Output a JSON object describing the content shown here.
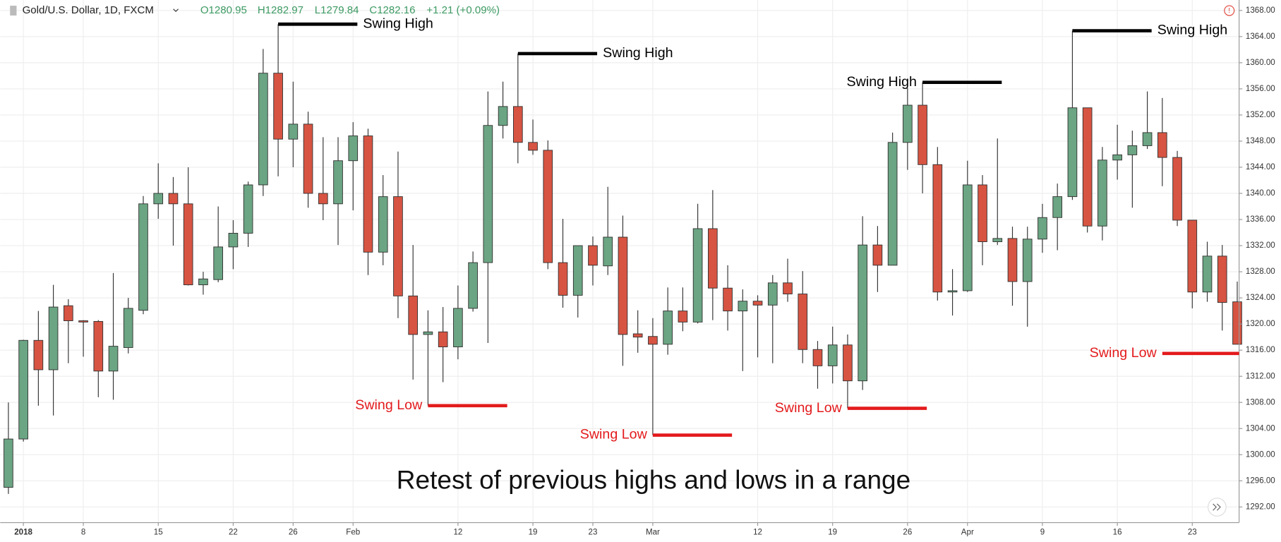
{
  "chart_data": {
    "type": "candlestick",
    "title": "Gold/U.S. Dollar, 1D, FXCM",
    "header_values": [
      "O1280.95",
      "H1282.97",
      "L1279.84",
      "C1282.16",
      "+1.21 (+0.09%)"
    ],
    "caption": "Retest of previous highs and lows in a range",
    "categories": [
      null,
      "2018",
      null,
      null,
      null,
      "8",
      null,
      null,
      null,
      null,
      "15",
      null,
      null,
      null,
      null,
      "22",
      null,
      null,
      null,
      "26",
      null,
      null,
      null,
      "Feb",
      null,
      null,
      null,
      null,
      null,
      null,
      "12",
      null,
      null,
      null,
      null,
      "19",
      null,
      null,
      null,
      "23",
      null,
      null,
      null,
      "Mar",
      null,
      null,
      null,
      null,
      null,
      null,
      "12",
      null,
      null,
      null,
      null,
      "19",
      null,
      null,
      null,
      null,
      "26",
      null,
      null,
      null,
      "Apr",
      null,
      null,
      null,
      null,
      "9",
      null,
      null,
      null,
      null,
      "16",
      null,
      null,
      null,
      null,
      "23",
      null,
      null,
      null
    ],
    "open": [
      1295,
      1302.4,
      1317.5,
      1313,
      1322.8,
      1320.5,
      1320.4,
      1312.8,
      1316.4,
      1322.1,
      1338.4,
      1340,
      1338.4,
      1326,
      1326.8,
      1331.8,
      1333.9,
      1341.3,
      1358.4,
      1348.3,
      1350.6,
      1340,
      1338.4,
      1345,
      1348.8,
      1331,
      1339.5,
      1324.3,
      1318.4,
      1318.8,
      1316.5,
      1322.4,
      1329.4,
      1350.4,
      1353.3,
      1347.8,
      1346.6,
      1329.4,
      1324.4,
      1332,
      1328.9,
      1333.3,
      1318.5,
      1318.1,
      1316.9,
      1322,
      1320.3,
      1334.6,
      1325.5,
      1322,
      1323.5,
      1322.9,
      1326.3,
      1324.6,
      1316.1,
      1313.6,
      1316.8,
      1311.3,
      1332.1,
      1329,
      1347.8,
      1353.5,
      1344.4,
      1324.9,
      1325.1,
      1341.3,
      1332.6,
      1333.1,
      1326.5,
      1333,
      1336.3,
      1339.5,
      1353.1,
      1335,
      1345.1,
      1345.9,
      1347.3,
      1349.3,
      1345.5,
      1335.9,
      1324.9,
      1330.4,
      1323.4
    ],
    "high": [
      1308,
      1317.6,
      1322,
      1326,
      1323.8,
      1320.6,
      1320.6,
      1327.8,
      1324,
      1339.6,
      1344.6,
      1342.5,
      1344,
      1328,
      1338,
      1335.9,
      1341.8,
      1362.1,
      1365.9,
      1357.1,
      1352.5,
      1348.6,
      1348.6,
      1350.9,
      1349.9,
      1342.8,
      1346.4,
      1332.1,
      1322.1,
      1322.6,
      1325.9,
      1331.1,
      1355.6,
      1357.1,
      1361.4,
      1351.3,
      1348.1,
      1336.1,
      1332,
      1333.4,
      1341,
      1336.6,
      1322.1,
      1320.9,
      1325.6,
      1325.6,
      1338.4,
      1340.5,
      1329,
      1325.3,
      1324.4,
      1327.5,
      1330,
      1328.1,
      1317.4,
      1319.6,
      1318.4,
      1336.5,
      1335,
      1349.3,
      1356.1,
      1357,
      1347.1,
      1328.4,
      1345,
      1342.8,
      1348.4,
      1334.9,
      1334.9,
      1338.4,
      1341.5,
      1364.9,
      1353.1,
      1347.1,
      1350.5,
      1349.6,
      1355.6,
      1354.6,
      1346.5,
      1335.9,
      1332.6,
      1332.1,
      1326.5
    ],
    "low": [
      1294,
      1302,
      1307.5,
      1306,
      1314,
      1315,
      1308.8,
      1308.4,
      1315.5,
      1321.5,
      1336.1,
      1332,
      1325.9,
      1324.5,
      1326.4,
      1328.4,
      1331.8,
      1339.6,
      1342.6,
      1344,
      1337.8,
      1335.9,
      1332.1,
      1337.4,
      1327.5,
      1329,
      1320.9,
      1311.5,
      1307.5,
      1311.1,
      1314.6,
      1321.9,
      1317.1,
      1348.4,
      1344.6,
      1345.9,
      1328.4,
      1322.5,
      1321,
      1325.9,
      1327.5,
      1313.6,
      1315.6,
      1303,
      1315.3,
      1318.9,
      1320.1,
      1320.6,
      1319,
      1312.8,
      1314.9,
      1314,
      1323.4,
      1314,
      1310.1,
      1310.9,
      1307.1,
      1309.9,
      1324.9,
      1329,
      1343.6,
      1340,
      1323.6,
      1321.3,
      1324.9,
      1329,
      1332.1,
      1322.8,
      1319.6,
      1330.9,
      1331.3,
      1339,
      1334,
      1332.8,
      1342.1,
      1337.8,
      1346.8,
      1341.1,
      1335,
      1322.4,
      1323.4,
      1319,
      1316.9
    ],
    "close": [
      1302.4,
      1317.5,
      1313,
      1322.6,
      1320.5,
      1320.3,
      1312.8,
      1316.6,
      1322.4,
      1338.4,
      1340,
      1338.4,
      1326,
      1326.9,
      1331.8,
      1333.9,
      1341.3,
      1358.4,
      1348.3,
      1350.6,
      1340,
      1338.4,
      1345,
      1348.8,
      1331,
      1339.5,
      1324.3,
      1318.4,
      1318.8,
      1316.5,
      1322.4,
      1329.4,
      1350.4,
      1353.3,
      1347.8,
      1346.6,
      1329.4,
      1324.4,
      1332,
      1329,
      1333.3,
      1318.4,
      1318,
      1316.9,
      1322,
      1320.3,
      1334.6,
      1325.5,
      1322,
      1323.5,
      1322.9,
      1326.3,
      1324.6,
      1316.1,
      1313.6,
      1316.8,
      1311.3,
      1332.1,
      1329,
      1347.8,
      1353.5,
      1344.4,
      1324.9,
      1325.1,
      1341.3,
      1332.6,
      1333.1,
      1326.5,
      1333,
      1336.3,
      1339.5,
      1353.1,
      1335,
      1345.1,
      1345.9,
      1347.3,
      1349.3,
      1345.5,
      1335.9,
      1324.9,
      1330.4,
      1323.3,
      1316.9
    ],
    "up_color": "#6ba583",
    "down_color": "#d75442",
    "ylim": [
      1289.6,
      1369.6
    ],
    "yticks": [
      {
        "value": 1292,
        "label": "1292.00"
      },
      {
        "value": 1296,
        "label": "1296.00"
      },
      {
        "value": 1300,
        "label": "1300.00"
      },
      {
        "value": 1304,
        "label": "1304.00"
      },
      {
        "value": 1308,
        "label": "1308.00"
      },
      {
        "value": 1312,
        "label": "1312.00"
      },
      {
        "value": 1316,
        "label": "1316.00"
      },
      {
        "value": 1320,
        "label": "1320.00"
      },
      {
        "value": 1324,
        "label": "1324.00"
      },
      {
        "value": 1328,
        "label": "1328.00"
      },
      {
        "value": 1332,
        "label": "1332.00"
      },
      {
        "value": 1336,
        "label": "1336.00"
      },
      {
        "value": 1340,
        "label": "1340.00"
      },
      {
        "value": 1344,
        "label": "1344.00"
      },
      {
        "value": 1348,
        "label": "1348.00"
      },
      {
        "value": 1352,
        "label": "1352.00"
      },
      {
        "value": 1356,
        "label": "1356.00"
      },
      {
        "value": 1360,
        "label": "1360.00"
      },
      {
        "value": 1364,
        "label": "1364.00"
      },
      {
        "value": 1368,
        "label": "1368.00"
      }
    ],
    "grid": true,
    "annotations": [
      {
        "label": "Swing High",
        "value": 1365.9,
        "color": "#000000"
      },
      {
        "label": "Swing High",
        "value": 1361.4,
        "color": "#000000"
      },
      {
        "label": "Swing High",
        "value": 1357,
        "color": "#000000"
      },
      {
        "label": "Swing High",
        "value": 1364.9,
        "color": "#000000"
      },
      {
        "label": "Swing Low",
        "value": 1307.5,
        "color": "#e31a1c"
      },
      {
        "label": "Swing Low",
        "value": 1303,
        "color": "#e31a1c"
      },
      {
        "label": "Swing Low",
        "value": 1307.1,
        "color": "#e31a1c"
      },
      {
        "label": "Swing Low",
        "value": 1315.5,
        "color": "#e31a1c"
      }
    ]
  }
}
